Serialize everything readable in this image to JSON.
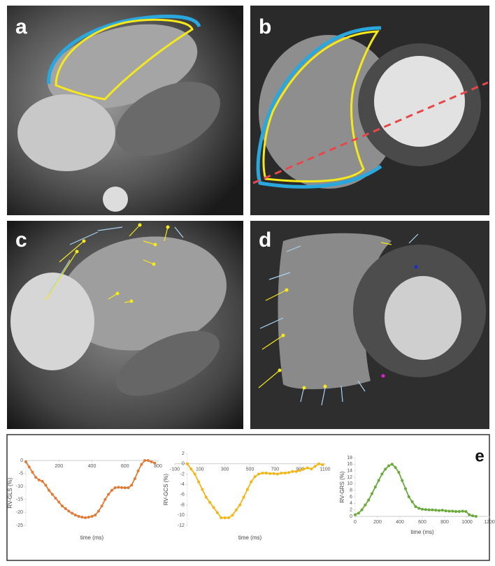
{
  "panel_labels": [
    "a",
    "b",
    "c",
    "d",
    "e"
  ],
  "chart_data": [
    {
      "type": "line",
      "ylabel": "RV-GLS (%)",
      "xlabel": "time (ms)",
      "color": "#e07b39",
      "x": [
        0,
        20,
        40,
        60,
        80,
        100,
        120,
        140,
        160,
        180,
        200,
        220,
        240,
        260,
        280,
        300,
        320,
        340,
        360,
        380,
        400,
        420,
        440,
        460,
        480,
        500,
        520,
        540,
        560,
        580,
        600,
        620,
        640,
        660,
        680,
        700,
        720,
        740,
        760,
        780
      ],
      "values": [
        -0.5,
        -2.5,
        -4.5,
        -6.5,
        -7.5,
        -8,
        -9.5,
        -11.5,
        -13,
        -14.5,
        -16,
        -17.5,
        -18.5,
        -19.5,
        -20.3,
        -21,
        -21.5,
        -21.8,
        -22,
        -21.8,
        -21.5,
        -21,
        -19.5,
        -17.5,
        -15,
        -13,
        -11.5,
        -10.5,
        -10.3,
        -10.4,
        -10.5,
        -10.5,
        -9.5,
        -7,
        -4,
        -1.5,
        0,
        0,
        -0.5,
        -1
      ],
      "xlim": [
        0,
        800
      ],
      "xticks": [
        200,
        400,
        600,
        800
      ],
      "ylim": [
        -25,
        0
      ],
      "yticks": [
        0,
        -5,
        -10,
        -15,
        -20,
        -25
      ]
    },
    {
      "type": "line",
      "ylabel": "RV-GCS (%)",
      "xlabel": "time (ms)",
      "color": "#f2b619",
      "x": [
        0,
        30,
        60,
        90,
        120,
        150,
        180,
        210,
        240,
        270,
        300,
        330,
        360,
        390,
        420,
        450,
        480,
        510,
        540,
        570,
        600,
        630,
        660,
        690,
        720,
        750,
        780,
        810,
        840,
        870,
        900,
        930,
        960,
        990,
        1020,
        1050,
        1080
      ],
      "values": [
        0,
        -1,
        -2,
        -3.5,
        -5,
        -6.5,
        -7.5,
        -8.5,
        -9.5,
        -10.5,
        -10.5,
        -10.5,
        -10,
        -9,
        -8,
        -6.5,
        -5,
        -3.5,
        -2.5,
        -2,
        -1.8,
        -1.8,
        -1.9,
        -1.9,
        -2,
        -1.8,
        -1.8,
        -1.7,
        -1.5,
        -1.5,
        -1.3,
        -1,
        -0.8,
        -1,
        -0.5,
        0,
        -0.2
      ],
      "xlim": [
        -100,
        1100
      ],
      "xticks": [
        -100,
        100,
        300,
        500,
        700,
        900,
        1100
      ],
      "ylim": [
        -12,
        2
      ],
      "yticks": [
        2,
        0,
        -2,
        -4,
        -6,
        -8,
        -10,
        -12
      ]
    },
    {
      "type": "line",
      "ylabel": "RV-GRS (%)",
      "xlabel": "time (ms)",
      "color": "#6aaa3a",
      "x": [
        0,
        30,
        60,
        90,
        120,
        150,
        180,
        210,
        240,
        270,
        300,
        330,
        360,
        390,
        420,
        450,
        480,
        510,
        540,
        570,
        600,
        630,
        660,
        690,
        720,
        750,
        780,
        810,
        840,
        870,
        900,
        930,
        960,
        990,
        1020,
        1050,
        1080
      ],
      "values": [
        0.5,
        1,
        2,
        3.5,
        5,
        7,
        9,
        11,
        13,
        14.5,
        15.5,
        16,
        15,
        13.5,
        11,
        8.5,
        6,
        4.5,
        3,
        2.5,
        2.2,
        2.1,
        2,
        2,
        1.9,
        1.8,
        1.9,
        1.7,
        1.6,
        1.6,
        1.5,
        1.5,
        1.6,
        1.5,
        0.5,
        0.2,
        0
      ],
      "xlim": [
        0,
        1200
      ],
      "xticks": [
        0,
        200,
        400,
        600,
        800,
        1000,
        1200
      ],
      "ylim": [
        0,
        18
      ],
      "yticks": [
        0,
        2,
        4,
        6,
        8,
        10,
        12,
        14,
        16,
        18
      ]
    }
  ]
}
